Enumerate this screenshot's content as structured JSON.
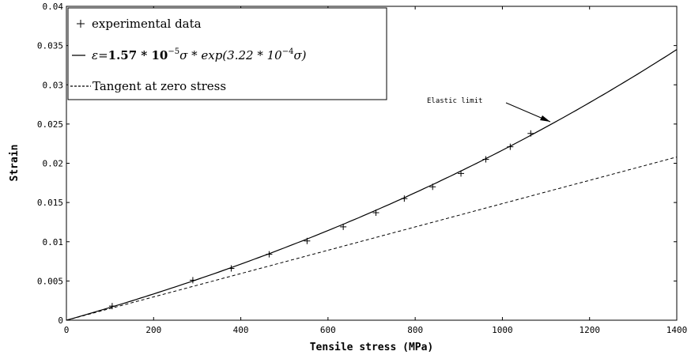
{
  "chart_data": {
    "type": "line",
    "title": "",
    "xlabel": "Tensile stress (MPa)",
    "ylabel": "Strain",
    "xlim": [
      0,
      1400
    ],
    "ylim": [
      0,
      0.04
    ],
    "grid": false,
    "legend_position": "top-left",
    "x_ticks": [
      "0",
      "200",
      "400",
      "600",
      "800",
      "1000",
      "1200",
      "1400"
    ],
    "y_ticks": [
      "0",
      "0.005",
      "0.01",
      "0.015",
      "0.02",
      "0.025",
      "0.03",
      "0.035",
      "0.04"
    ],
    "series": [
      {
        "name": "experimental data",
        "kind": "scatter",
        "marker": "+",
        "x": [
          105,
          290,
          378,
          465,
          552,
          635,
          710,
          775,
          840,
          905,
          962,
          1018,
          1065
        ],
        "y": [
          0.0018,
          0.0051,
          0.0066,
          0.0084,
          0.0101,
          0.0119,
          0.0137,
          0.0155,
          0.017,
          0.0187,
          0.0205,
          0.0221,
          0.0238
        ]
      },
      {
        "name": "fit",
        "kind": "line",
        "style": "solid",
        "formula": "1.57e-5 * s * exp(3.22e-4 * s)"
      },
      {
        "name": "Tangent at zero stress",
        "kind": "line",
        "style": "dashed",
        "formula": "1.57e-5 * s"
      }
    ],
    "legend": {
      "scatter_label": "experimental data",
      "fit_label_parts": {
        "lhs": "ε",
        "eq": "=",
        "c1": "1.57 * 10",
        "e1": "−5",
        "mid": "σ * exp(3.22 * 10",
        "e2": "−4",
        "tail": "σ)"
      },
      "tangent_label": "Tangent at zero stress"
    },
    "annotation": {
      "text": "Elastic limit",
      "x": 1110,
      "y": 0.0254
    }
  }
}
